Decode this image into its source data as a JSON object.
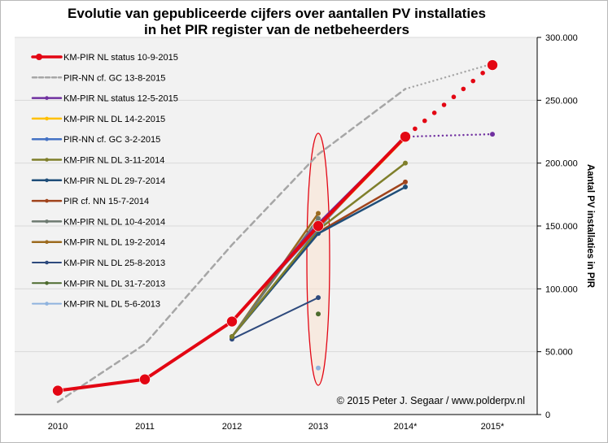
{
  "chart_data": {
    "type": "line",
    "title_lines": [
      "Evolutie van gepubliceerde cijfers over aantallen PV installaties",
      "in het PIR register van de netbeheerders"
    ],
    "ylabel": "Aantal PV installaties in PIR",
    "categories": [
      "2010",
      "2011",
      "2012",
      "2013",
      "2014*",
      "2015*"
    ],
    "y_ticks": [
      "0",
      "50.000",
      "100.000",
      "150.000",
      "200.000",
      "250.000",
      "300.000"
    ],
    "ylim": [
      0,
      300000
    ],
    "y_axis_position": "right",
    "grid": true,
    "legend_position": "top-left",
    "copyright": "© 2015 Peter J. Segaar / www.polderpv.nl",
    "highlight_ellipse_category": "2013",
    "series": [
      {
        "name": "KM-PIR NL status 10-9-2015",
        "color": "#e30613",
        "label_color": "#e30613",
        "width": 4,
        "dash": "",
        "marker": 6.5,
        "x": [
          0,
          1,
          2,
          3,
          4
        ],
        "values": [
          19000,
          28000,
          74000,
          150000,
          221000
        ],
        "projection": {
          "x": [
            4,
            5
          ],
          "values": [
            221000,
            278000
          ],
          "style": "dots"
        }
      },
      {
        "name": "PIR-NN cf. GC 13-8-2015",
        "color": "#a6a6a6",
        "label_color": "#a6a6a6",
        "width": 2.5,
        "dash": "7 5",
        "marker": 0,
        "x": [
          0,
          1,
          2,
          3,
          4
        ],
        "values": [
          10000,
          56000,
          135000,
          207000,
          259000
        ],
        "projection": {
          "x": [
            4,
            5
          ],
          "values": [
            259000,
            279000
          ],
          "style": "smalldots"
        }
      },
      {
        "name": "KM-PIR NL status 12-5-2015",
        "color": "#7030a0",
        "label_color": "#000000",
        "width": 2.5,
        "dash": "",
        "marker": 0,
        "x": [
          2,
          3,
          4
        ],
        "values": [
          74000,
          152000,
          221000
        ],
        "projection": {
          "x": [
            4,
            5
          ],
          "values": [
            221000,
            223000
          ],
          "style": "smalldots"
        }
      },
      {
        "name": "KM-PIR NL DL 14-2-2015",
        "color": "#ffc000",
        "label_color": "#000000",
        "width": 2.5,
        "dash": "",
        "marker": 0,
        "x": [
          2,
          3,
          4
        ],
        "values": [
          74000,
          149000,
          220000
        ]
      },
      {
        "name": "PIR-NN cf. GC 3-2-2015",
        "color": "#4472c4",
        "label_color": "#000000",
        "width": 2.5,
        "dash": "",
        "marker": 0,
        "x": [
          2,
          3,
          4
        ],
        "values": [
          74000,
          148000,
          222000
        ]
      },
      {
        "name": "KM-PIR NL DL 3-11-2014",
        "color": "#7f7f2b",
        "label_color": "#000000",
        "width": 2.5,
        "dash": "",
        "marker": 3,
        "x": [
          2,
          3,
          4
        ],
        "values": [
          62000,
          147000,
          200000
        ]
      },
      {
        "name": "KM-PIR NL DL 29-7-2014",
        "color": "#1f4e79",
        "label_color": "#000000",
        "width": 2.5,
        "dash": "",
        "marker": 3,
        "x": [
          2,
          3,
          4
        ],
        "values": [
          62000,
          144000,
          181000
        ]
      },
      {
        "name": "PIR cf. NN 15-7-2014",
        "color": "#a0441c",
        "label_color": "#000000",
        "width": 2.5,
        "dash": "",
        "marker": 3,
        "x": [
          2,
          3,
          4
        ],
        "values": [
          62000,
          145000,
          185000
        ]
      },
      {
        "name": "KM-PIR NL DL 10-4-2014",
        "color": "#6d7a70",
        "label_color": "#000000",
        "width": 2.5,
        "dash": "",
        "marker": 3,
        "x": [
          2,
          3
        ],
        "values": [
          62000,
          156000
        ]
      },
      {
        "name": "KM-PIR NL DL 19-2-2014",
        "color": "#9c6a1e",
        "label_color": "#000000",
        "width": 2.5,
        "dash": "",
        "marker": 3,
        "x": [
          2,
          3
        ],
        "values": [
          62000,
          160000
        ]
      },
      {
        "name": "KM-PIR NL DL 25-8-2013",
        "color": "#2e4a7d",
        "label_color": "#000000",
        "width": 2,
        "dash": "",
        "marker": 3,
        "x": [
          2,
          3
        ],
        "values": [
          60000,
          93000
        ]
      },
      {
        "name": "KM-PIR NL DL 31-7-2013",
        "color": "#4d6b2e",
        "label_color": "#000000",
        "width": 2,
        "dash": "",
        "marker": 3,
        "x": [
          3
        ],
        "values": [
          80000
        ]
      },
      {
        "name": "KM-PIR NL DL 5-6-2013",
        "color": "#8fb3de",
        "label_color": "#000000",
        "width": 2,
        "dash": "",
        "marker": 3,
        "x": [
          3
        ],
        "values": [
          37000
        ]
      }
    ]
  }
}
